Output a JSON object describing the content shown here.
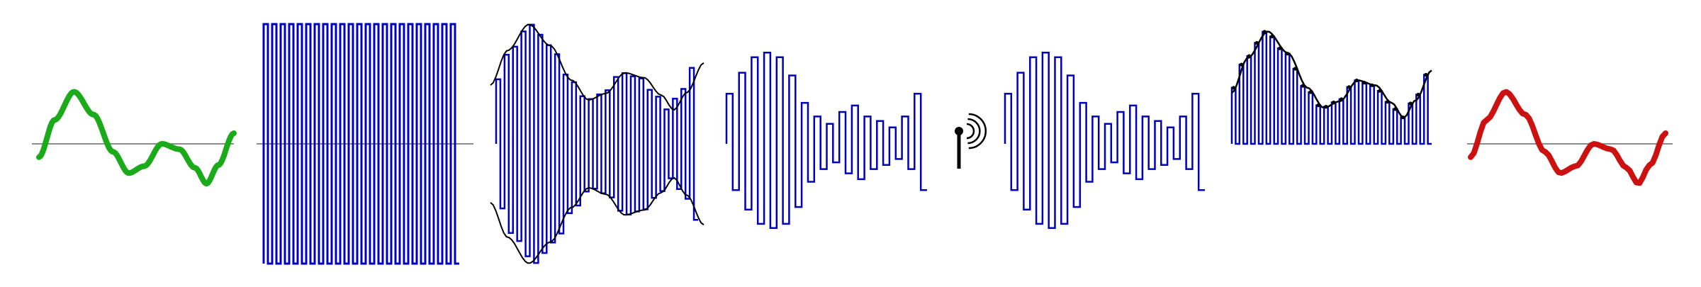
{
  "colors": {
    "background": "#ffffff",
    "axis": "#666666",
    "input_signal": "#1aaa1a",
    "output_signal": "#cc1111",
    "pulse": "#0000bb",
    "envelope": "#000000",
    "antenna": "#000000"
  },
  "icons": {
    "transmit": "antenna-icon"
  },
  "stages": [
    {
      "id": "input-signal",
      "kind": "analog-signal"
    },
    {
      "id": "carrier-pulse-train",
      "kind": "pulse-train"
    },
    {
      "id": "modulated-pulses-with-envelope",
      "kind": "modulated-pulses"
    },
    {
      "id": "transmitted-pulses",
      "kind": "pulse-sequence"
    },
    {
      "id": "antenna",
      "kind": "transmitter"
    },
    {
      "id": "received-pulses",
      "kind": "pulse-sequence"
    },
    {
      "id": "demodulated-pulses",
      "kind": "rectified-pulses"
    },
    {
      "id": "output-signal",
      "kind": "analog-signal"
    }
  ]
}
